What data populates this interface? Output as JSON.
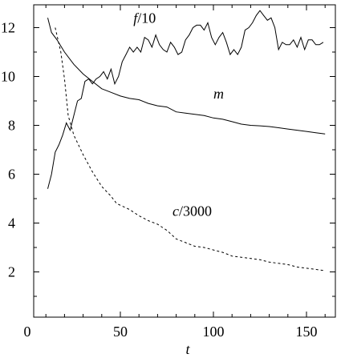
{
  "chart_data": {
    "type": "line",
    "title": "",
    "xlabel": "t",
    "ylabel": "",
    "xlim": [
      0,
      165
    ],
    "ylim": [
      0,
      13
    ],
    "x_ticks": [
      0,
      50,
      100,
      150
    ],
    "y_ticks": [
      2,
      4,
      6,
      8,
      10,
      12
    ],
    "grid": false,
    "series": [
      {
        "key": "f",
        "label_prefix": "f",
        "label_suffix": "/10",
        "style": "solid",
        "label_at": [
          57,
          12.2
        ],
        "points": [
          [
            11,
            5.4
          ],
          [
            13,
            6.0
          ],
          [
            15,
            6.9
          ],
          [
            17,
            7.2
          ],
          [
            19,
            7.6
          ],
          [
            21,
            8.1
          ],
          [
            23,
            7.8
          ],
          [
            25,
            8.4
          ],
          [
            27,
            9.0
          ],
          [
            29,
            9.1
          ],
          [
            31,
            9.8
          ],
          [
            33,
            9.9
          ],
          [
            35,
            9.7
          ],
          [
            37,
            9.9
          ],
          [
            39,
            10.0
          ],
          [
            41,
            10.2
          ],
          [
            43,
            9.9
          ],
          [
            45,
            10.3
          ],
          [
            47,
            9.7
          ],
          [
            49,
            10.0
          ],
          [
            51,
            10.6
          ],
          [
            53,
            10.9
          ],
          [
            55,
            11.2
          ],
          [
            57,
            11.0
          ],
          [
            59,
            11.2
          ],
          [
            61,
            11.0
          ],
          [
            63,
            11.6
          ],
          [
            65,
            11.5
          ],
          [
            67,
            11.2
          ],
          [
            69,
            11.7
          ],
          [
            71,
            11.3
          ],
          [
            73,
            11.1
          ],
          [
            75,
            11.0
          ],
          [
            77,
            11.4
          ],
          [
            79,
            11.2
          ],
          [
            81,
            10.9
          ],
          [
            83,
            11.0
          ],
          [
            85,
            11.5
          ],
          [
            87,
            11.7
          ],
          [
            89,
            12.0
          ],
          [
            91,
            12.1
          ],
          [
            93,
            12.1
          ],
          [
            95,
            11.9
          ],
          [
            97,
            12.2
          ],
          [
            99,
            11.6
          ],
          [
            101,
            11.3
          ],
          [
            103,
            11.6
          ],
          [
            105,
            11.8
          ],
          [
            107,
            11.4
          ],
          [
            109,
            10.9
          ],
          [
            111,
            11.1
          ],
          [
            113,
            10.9
          ],
          [
            115,
            11.2
          ],
          [
            117,
            11.9
          ],
          [
            119,
            12.0
          ],
          [
            121,
            12.2
          ],
          [
            123,
            12.5
          ],
          [
            125,
            12.7
          ],
          [
            127,
            12.5
          ],
          [
            129,
            12.3
          ],
          [
            131,
            12.4
          ],
          [
            133,
            12.0
          ],
          [
            135,
            11.1
          ],
          [
            137,
            11.4
          ],
          [
            139,
            11.3
          ],
          [
            141,
            11.3
          ],
          [
            143,
            11.5
          ],
          [
            145,
            11.2
          ],
          [
            147,
            11.6
          ],
          [
            149,
            11.1
          ],
          [
            151,
            11.5
          ],
          [
            153,
            11.5
          ],
          [
            155,
            11.3
          ],
          [
            157,
            11.3
          ],
          [
            159,
            11.4
          ]
        ]
      },
      {
        "key": "m",
        "label_prefix": "m",
        "label_suffix": "",
        "style": "solid",
        "label_at": [
          100,
          9.1
        ],
        "points": [
          [
            11,
            12.4
          ],
          [
            13,
            11.8
          ],
          [
            16,
            11.5
          ],
          [
            20,
            11.0
          ],
          [
            25,
            10.5
          ],
          [
            30,
            10.1
          ],
          [
            35,
            9.8
          ],
          [
            40,
            9.5
          ],
          [
            45,
            9.35
          ],
          [
            50,
            9.2
          ],
          [
            55,
            9.1
          ],
          [
            60,
            9.05
          ],
          [
            65,
            8.9
          ],
          [
            70,
            8.8
          ],
          [
            75,
            8.75
          ],
          [
            80,
            8.55
          ],
          [
            85,
            8.5
          ],
          [
            90,
            8.45
          ],
          [
            95,
            8.4
          ],
          [
            100,
            8.3
          ],
          [
            105,
            8.25
          ],
          [
            110,
            8.15
          ],
          [
            115,
            8.05
          ],
          [
            120,
            8.0
          ],
          [
            125,
            7.98
          ],
          [
            130,
            7.95
          ],
          [
            135,
            7.9
          ],
          [
            140,
            7.85
          ],
          [
            145,
            7.8
          ],
          [
            150,
            7.75
          ],
          [
            155,
            7.7
          ],
          [
            160,
            7.65
          ]
        ]
      },
      {
        "key": "c",
        "label_prefix": "c",
        "label_suffix": "/3000",
        "style": "dashed",
        "label_at": [
          78,
          4.3
        ],
        "points": [
          [
            15,
            12.0
          ],
          [
            18,
            11.0
          ],
          [
            20,
            9.9
          ],
          [
            22,
            8.4
          ],
          [
            25,
            7.6
          ],
          [
            30,
            6.8
          ],
          [
            35,
            6.1
          ],
          [
            40,
            5.5
          ],
          [
            45,
            5.1
          ],
          [
            48,
            4.8
          ],
          [
            55,
            4.55
          ],
          [
            60,
            4.3
          ],
          [
            65,
            4.1
          ],
          [
            70,
            3.95
          ],
          [
            75,
            3.7
          ],
          [
            80,
            3.35
          ],
          [
            85,
            3.2
          ],
          [
            90,
            3.05
          ],
          [
            95,
            3.0
          ],
          [
            100,
            2.9
          ],
          [
            105,
            2.8
          ],
          [
            110,
            2.65
          ],
          [
            115,
            2.6
          ],
          [
            120,
            2.55
          ],
          [
            125,
            2.5
          ],
          [
            130,
            2.4
          ],
          [
            135,
            2.35
          ],
          [
            140,
            2.3
          ],
          [
            145,
            2.2
          ],
          [
            150,
            2.15
          ],
          [
            155,
            2.1
          ],
          [
            160,
            2.05
          ]
        ]
      }
    ]
  }
}
